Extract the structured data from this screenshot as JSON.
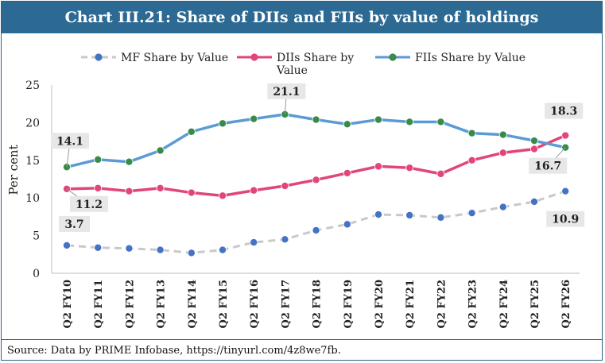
{
  "chart_data": {
    "type": "line",
    "title": "Chart III.21: Share of DIIs and FIIs by value of holdings",
    "xlabel": "",
    "ylabel": "Per cent",
    "ylim": [
      0,
      25
    ],
    "yticks": [
      "0",
      "5",
      "10",
      "15",
      "20",
      "25"
    ],
    "categories": [
      "Q2 FY10",
      "Q2 FY11",
      "Q2 FY12",
      "Q2 FY13",
      "Q2 FY14",
      "Q2 FY15",
      "Q2 FY16",
      "Q2 FY17",
      "Q2 FY18",
      "Q2 FY19",
      "Q2 FY20",
      "Q2 FY21",
      "Q2 FY22",
      "Q2 FY23",
      "Q2 FY24",
      "Q2 FY25",
      "Q2 FY26"
    ],
    "series": [
      {
        "name": "MF Share by Value",
        "legend": [
          "MF Share by Value"
        ],
        "line_color": "#c9c9c9",
        "marker_color": "#4472c4",
        "dashed": true,
        "values": [
          3.7,
          3.4,
          3.3,
          3.1,
          2.7,
          3.1,
          4.1,
          4.5,
          5.7,
          6.5,
          7.8,
          7.7,
          7.4,
          8.0,
          8.8,
          9.5,
          10.9
        ]
      },
      {
        "name": "DIIs Share by Value",
        "legend": [
          "DIIs Share by",
          "Value"
        ],
        "line_color": "#e0467a",
        "marker_color": "#e0467a",
        "dashed": false,
        "values": [
          11.2,
          11.3,
          10.9,
          11.3,
          10.7,
          10.3,
          11.0,
          11.6,
          12.4,
          13.3,
          14.2,
          14.0,
          13.2,
          15.0,
          16.0,
          16.5,
          18.3
        ]
      },
      {
        "name": "FIIs Share by Value",
        "legend": [
          "FIIs Share by Value"
        ],
        "line_color": "#5b9bd5",
        "marker_color": "#3a8a4a",
        "dashed": false,
        "values": [
          14.1,
          15.1,
          14.8,
          16.3,
          18.8,
          19.9,
          20.5,
          21.1,
          20.4,
          19.8,
          20.4,
          20.1,
          20.1,
          18.6,
          18.4,
          17.6,
          16.7
        ]
      }
    ],
    "annotations": [
      {
        "series": 0,
        "index": 0,
        "text": "3.7"
      },
      {
        "series": 0,
        "index": 16,
        "text": "10.9"
      },
      {
        "series": 1,
        "index": 0,
        "text": "11.2"
      },
      {
        "series": 1,
        "index": 16,
        "text": "18.3"
      },
      {
        "series": 2,
        "index": 0,
        "text": "14.1"
      },
      {
        "series": 2,
        "index": 7,
        "text": "21.1"
      },
      {
        "series": 2,
        "index": 16,
        "text": "16.7"
      }
    ]
  },
  "source_text": "Source: Data by PRIME Infobase, https://tinyurl.com/4z8we7fb."
}
